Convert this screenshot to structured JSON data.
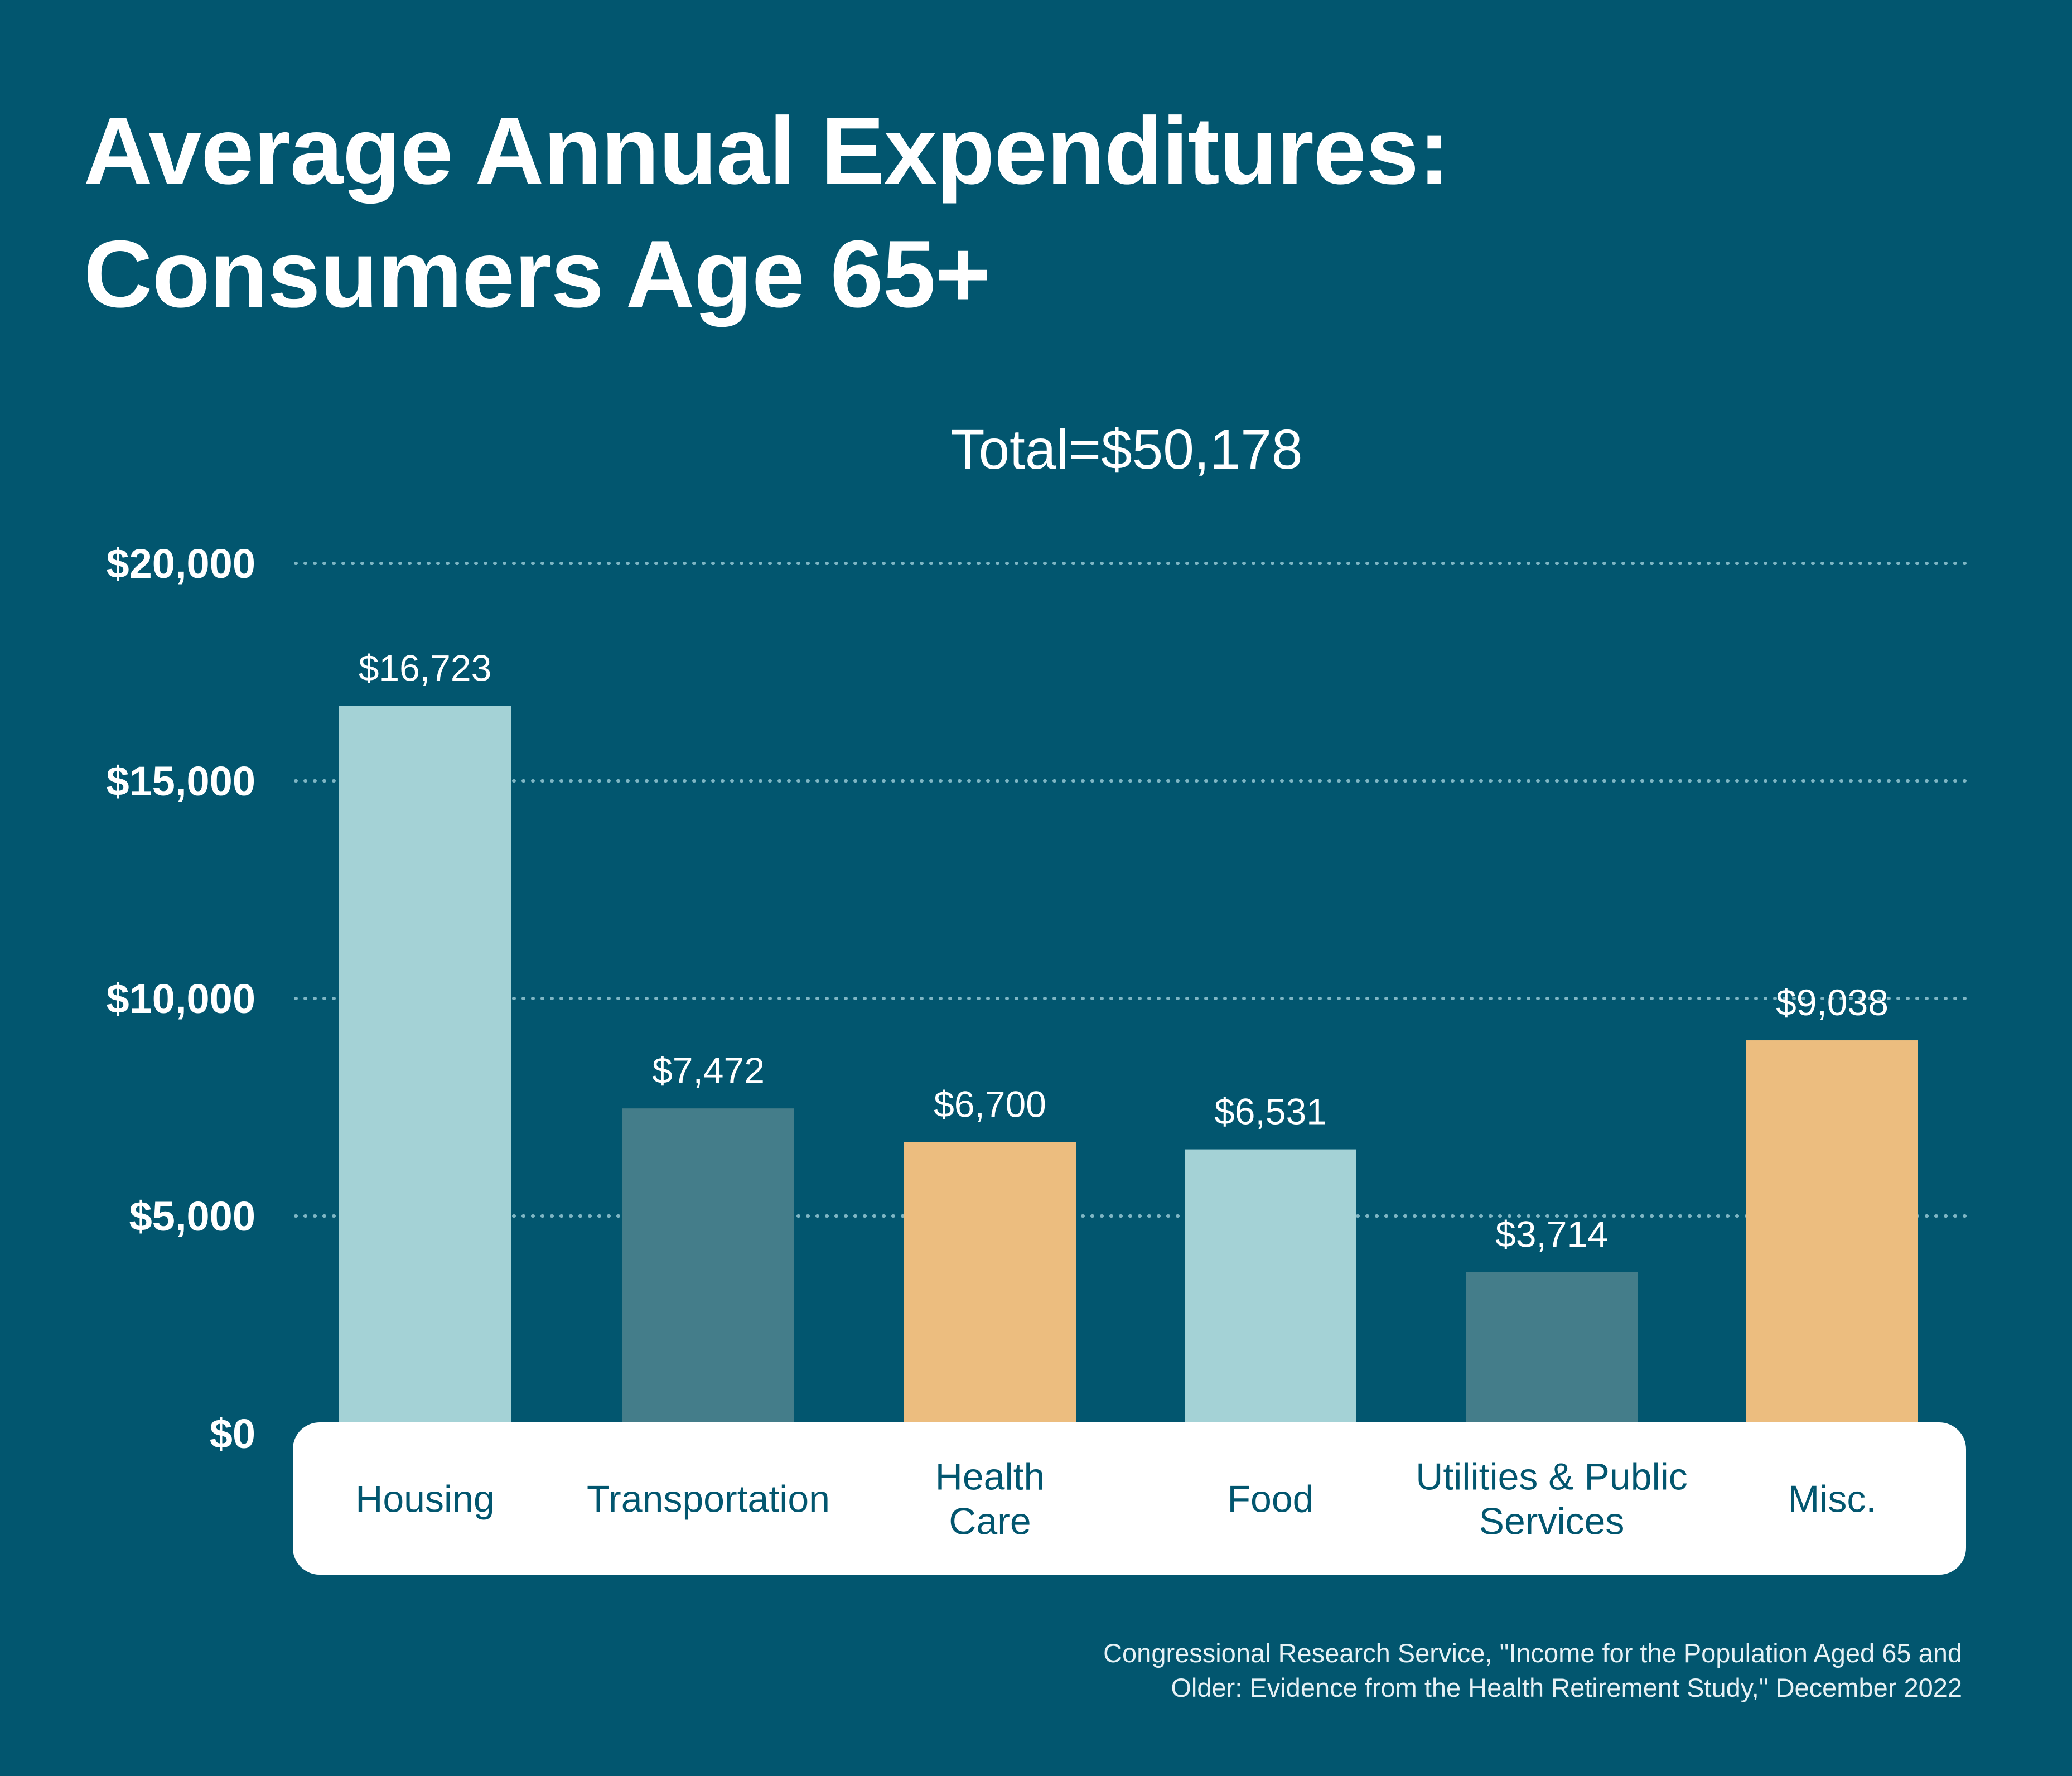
{
  "title": {
    "line1": "Average Annual Expenditures:",
    "line2": "Consumers Age 65+"
  },
  "chart_data": {
    "type": "bar",
    "subtitle": "Total=$50,178",
    "categories": [
      [
        "Housing"
      ],
      [
        "Transportation"
      ],
      [
        "Health",
        "Care"
      ],
      [
        "Food"
      ],
      [
        "Utilities & Public",
        "Services"
      ],
      [
        "Misc."
      ]
    ],
    "values": [
      16723,
      7472,
      6700,
      6531,
      3714,
      9038
    ],
    "data_labels": [
      "$16,723",
      "$7,472",
      "$6,700",
      "$6,531",
      "$3,714",
      "$9,038"
    ],
    "bar_colors": [
      "#a4d2d6",
      "#447d8a",
      "#ecbd7f",
      "#a4d2d6",
      "#447d8a",
      "#ecbd7f"
    ],
    "ylim": [
      0,
      20000
    ],
    "yticks": [
      {
        "value": 20000,
        "label": "$20,000"
      },
      {
        "value": 15000,
        "label": "$15,000"
      },
      {
        "value": 10000,
        "label": "$10,000"
      },
      {
        "value": 5000,
        "label": "$5,000"
      },
      {
        "value": 0,
        "label": "$0"
      }
    ],
    "grid": "dotted horizontal",
    "xlabel": "",
    "ylabel": ""
  },
  "colors": {
    "background": "#02566f",
    "text": "#ffffff",
    "category_text": "#02566f",
    "axis_panel": "#ffffff",
    "grid": "#7fb6c4"
  },
  "source": {
    "line1": "Congressional Research Service, \"Income for the Population Aged 65 and",
    "line2": "Older: Evidence from the Health Retirement Study,\" December 2022"
  }
}
